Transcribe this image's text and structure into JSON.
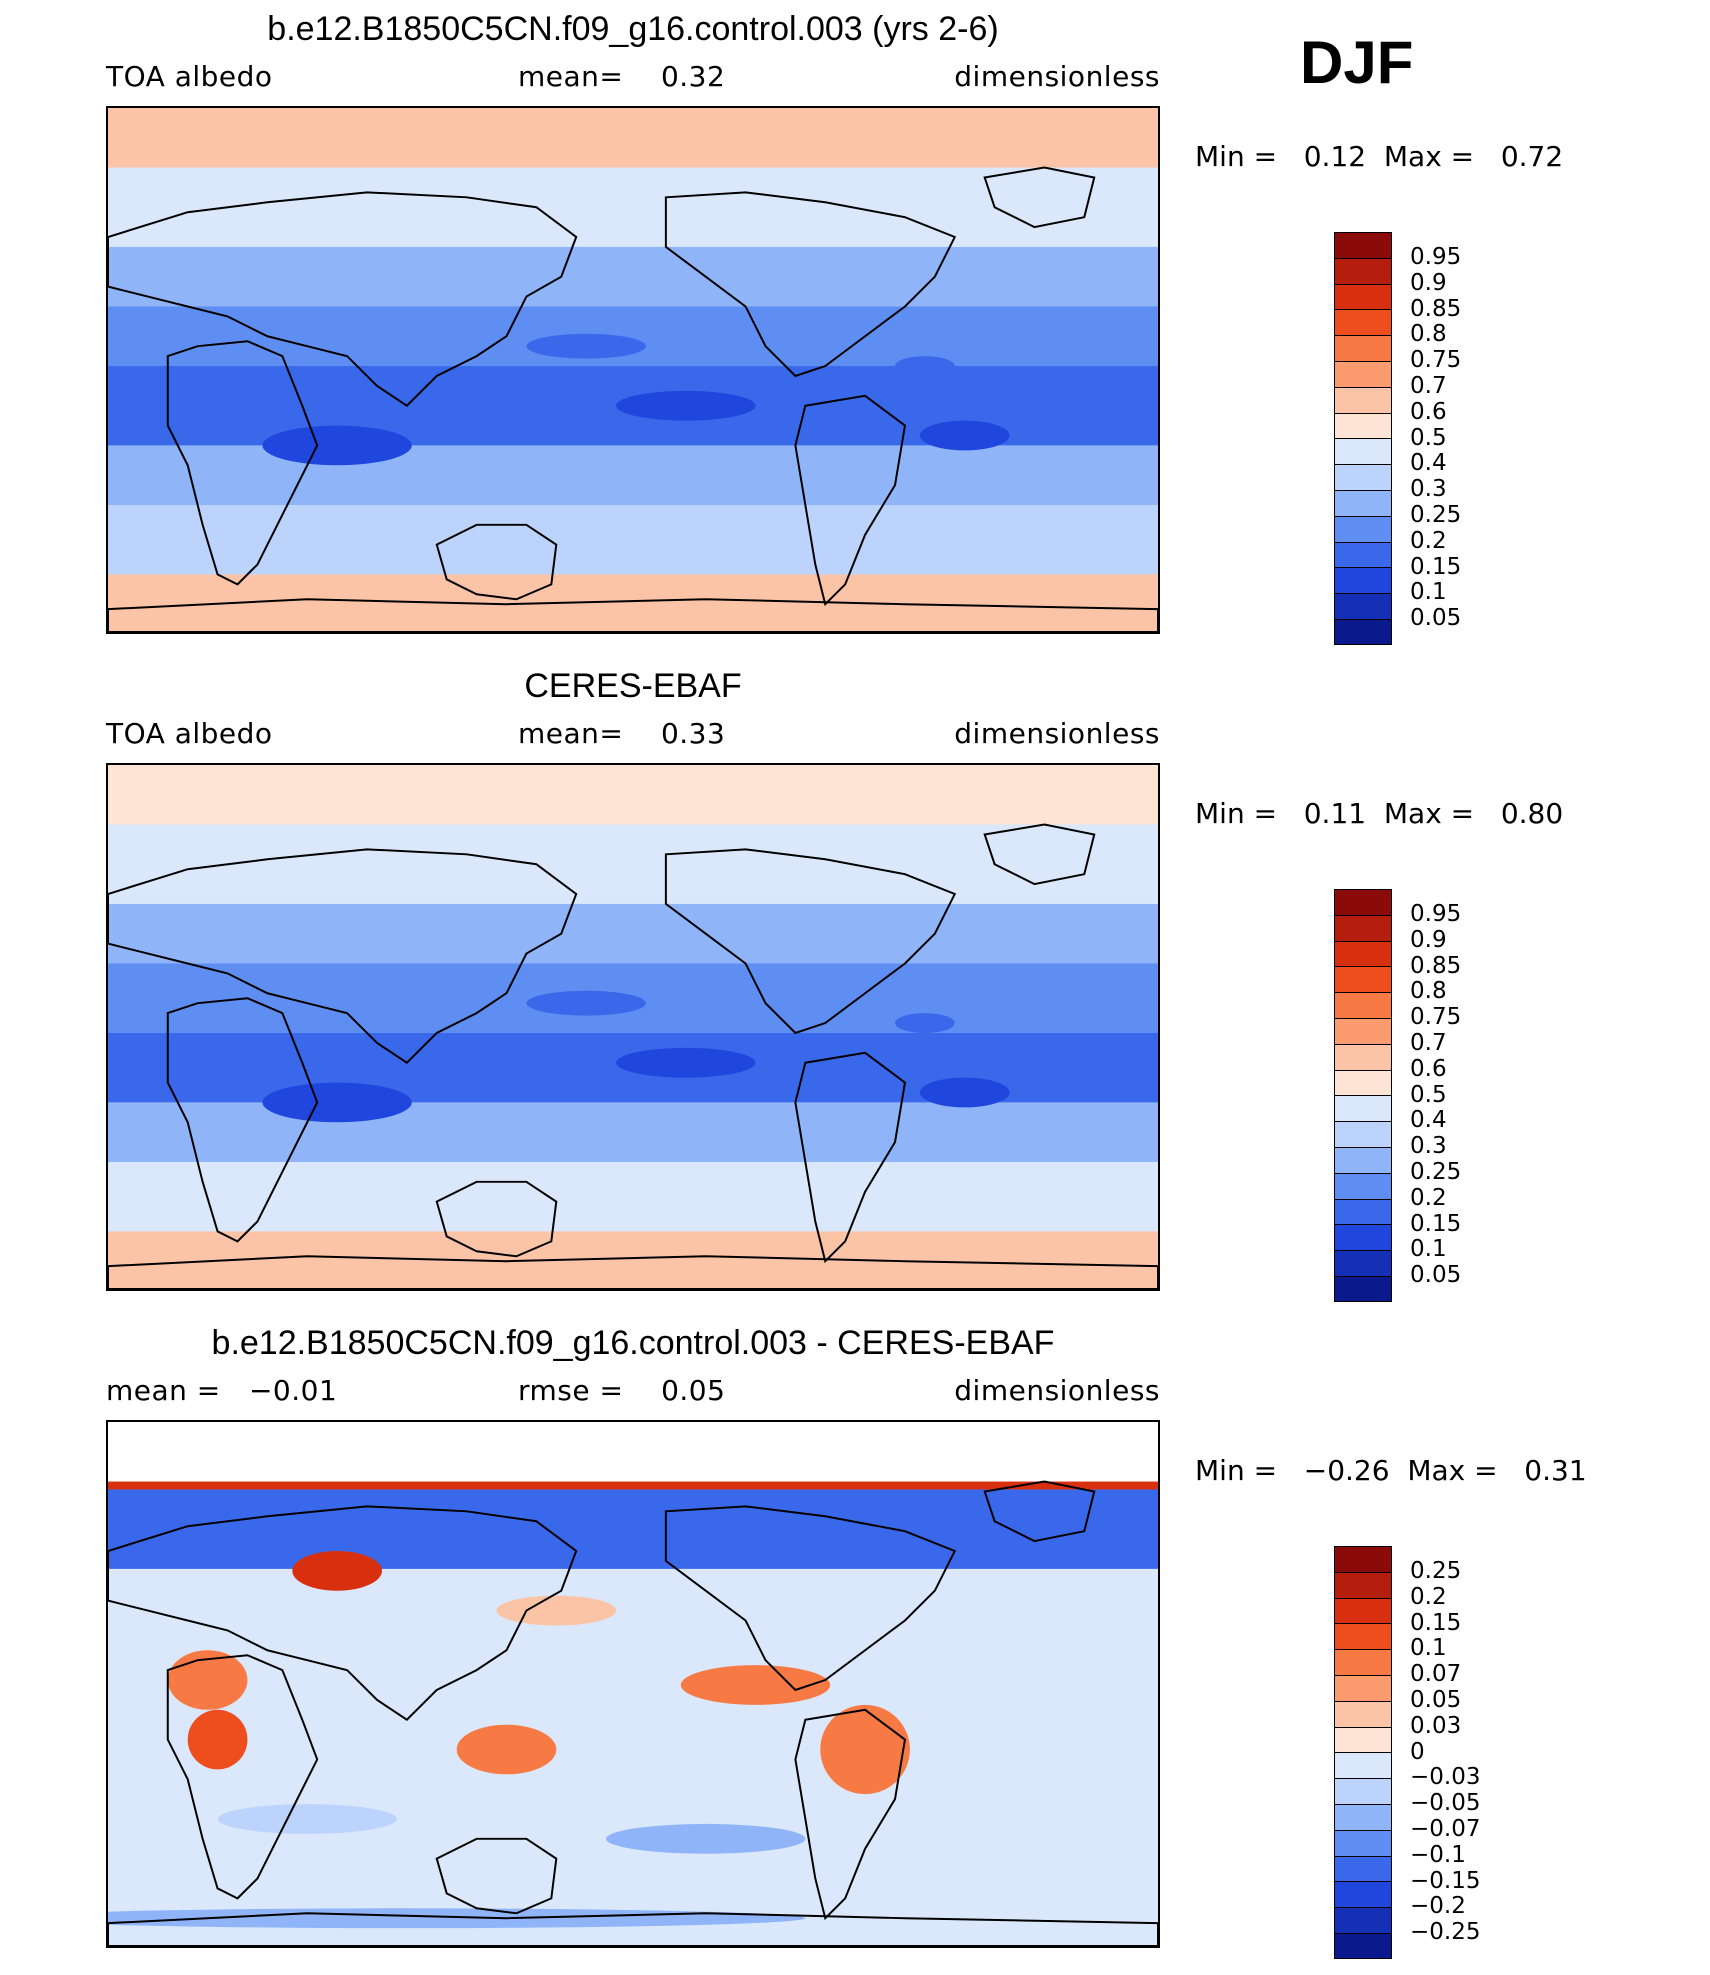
{
  "season": "DJF",
  "panels": [
    {
      "title": "b.e12.B1850C5CN.f09_g16.control.003 (yrs 2-6)",
      "sub_left": "TOA albedo",
      "sub_mid": "mean=    0.32",
      "sub_right": "dimensionless",
      "min_label": "Min =",
      "min_value": "0.12",
      "max_label": "Max =",
      "max_value": "0.72",
      "kind": "abs",
      "colorbar": {
        "levels": [
          "0.95",
          "0.9",
          "0.85",
          "0.8",
          "0.75",
          "0.7",
          "0.6",
          "0.5",
          "0.4",
          "0.3",
          "0.25",
          "0.2",
          "0.15",
          "0.1",
          "0.05"
        ],
        "colors": [
          "#8b0a0a",
          "#b51e0c",
          "#d8300f",
          "#ee4d1e",
          "#f77a44",
          "#fb9b6e",
          "#fcc4a6",
          "#fde4d4",
          "#dbe8fb",
          "#bcd3fb",
          "#8fb4f8",
          "#5f8ef2",
          "#3968ea",
          "#1f47dd",
          "#1330b7",
          "#0a1a8c"
        ]
      }
    },
    {
      "title": "CERES-EBAF",
      "sub_left": "TOA albedo",
      "sub_mid": "mean=    0.33",
      "sub_right": "dimensionless",
      "min_label": "Min =",
      "min_value": "0.11",
      "max_label": "Max =",
      "max_value": "0.80",
      "kind": "abs",
      "colorbar": {
        "levels": [
          "0.95",
          "0.9",
          "0.85",
          "0.8",
          "0.75",
          "0.7",
          "0.6",
          "0.5",
          "0.4",
          "0.3",
          "0.25",
          "0.2",
          "0.15",
          "0.1",
          "0.05"
        ],
        "colors": [
          "#8b0a0a",
          "#b51e0c",
          "#d8300f",
          "#ee4d1e",
          "#f77a44",
          "#fb9b6e",
          "#fcc4a6",
          "#fde4d4",
          "#dbe8fb",
          "#bcd3fb",
          "#8fb4f8",
          "#5f8ef2",
          "#3968ea",
          "#1f47dd",
          "#1330b7",
          "#0a1a8c"
        ]
      }
    },
    {
      "title": "b.e12.B1850C5CN.f09_g16.control.003 - CERES-EBAF",
      "sub_left": "mean =   −0.01",
      "sub_mid": "rmse =    0.05",
      "sub_right": "dimensionless",
      "min_label": "Min =",
      "min_value": "−0.26",
      "max_label": "Max =",
      "max_value": "0.31",
      "kind": "diff",
      "colorbar": {
        "levels": [
          "0.25",
          "0.2",
          "0.15",
          "0.1",
          "0.07",
          "0.05",
          "0.03",
          "0",
          "−0.03",
          "−0.05",
          "−0.07",
          "−0.1",
          "−0.15",
          "−0.2",
          "−0.25"
        ],
        "colors": [
          "#8b0a0a",
          "#b51e0c",
          "#d8300f",
          "#ee4d1e",
          "#f77a44",
          "#fb9b6e",
          "#fcc4a6",
          "#fde4d4",
          "#dbe8fb",
          "#bcd3fb",
          "#8fb4f8",
          "#5f8ef2",
          "#3968ea",
          "#1f47dd",
          "#1330b7",
          "#0a1a8c"
        ]
      }
    }
  ]
}
